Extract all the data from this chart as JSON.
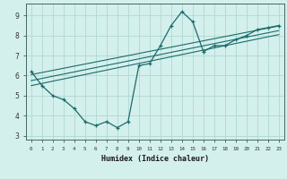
{
  "x": [
    0,
    1,
    2,
    3,
    4,
    5,
    6,
    7,
    8,
    9,
    10,
    11,
    12,
    13,
    14,
    15,
    16,
    17,
    18,
    19,
    20,
    21,
    22,
    23
  ],
  "y_main": [
    6.2,
    5.5,
    5.0,
    4.8,
    4.35,
    3.7,
    3.5,
    3.7,
    3.4,
    3.7,
    6.5,
    6.6,
    7.5,
    8.5,
    9.2,
    8.7,
    7.2,
    7.5,
    7.5,
    7.8,
    8.0,
    8.3,
    8.4,
    8.5
  ],
  "line_color": "#1a6b6b",
  "bg_color": "#d4f0ec",
  "grid_color": "#b0d8d2",
  "xlabel": "Humidex (Indice chaleur)",
  "xlim": [
    -0.5,
    23.5
  ],
  "ylim": [
    2.8,
    9.6
  ],
  "yticks": [
    3,
    4,
    5,
    6,
    7,
    8,
    9
  ],
  "xticks": [
    0,
    1,
    2,
    3,
    4,
    5,
    6,
    7,
    8,
    9,
    10,
    11,
    12,
    13,
    14,
    15,
    16,
    17,
    18,
    19,
    20,
    21,
    22,
    23
  ],
  "regression_lines": [
    {
      "x_start": 0,
      "y_start": 6.05,
      "x_end": 23,
      "y_end": 8.48
    },
    {
      "x_start": 0,
      "y_start": 5.75,
      "x_end": 23,
      "y_end": 8.25
    },
    {
      "x_start": 0,
      "y_start": 5.5,
      "x_end": 23,
      "y_end": 8.05
    }
  ]
}
